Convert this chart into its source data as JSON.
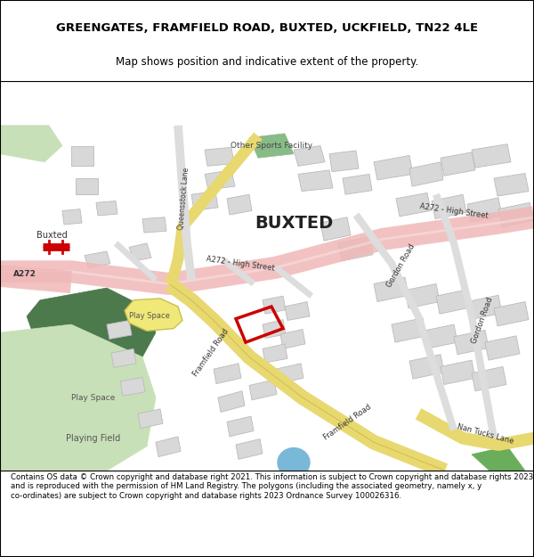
{
  "title": "GREENGATES, FRAMFIELD ROAD, BUXTED, UCKFIELD, TN22 4LE",
  "subtitle": "Map shows position and indicative extent of the property.",
  "footer": "Contains OS data © Crown copyright and database right 2021. This information is subject to Crown copyright and database rights 2023 and is reproduced with the permission of HM Land Registry. The polygons (including the associated geometry, namely x, y co-ordinates) are subject to Crown copyright and database rights 2023 Ordnance Survey 100026316.",
  "map_bg": "#ffffff",
  "road_pink": "#f0b8b8",
  "green_dark": "#4d7a4d",
  "green_light": "#c8e0b8",
  "building_color": "#d8d8d8",
  "building_outline": "#bbbbbb",
  "highlight_red": "#cc0000",
  "footer_bg": "#ffffff"
}
